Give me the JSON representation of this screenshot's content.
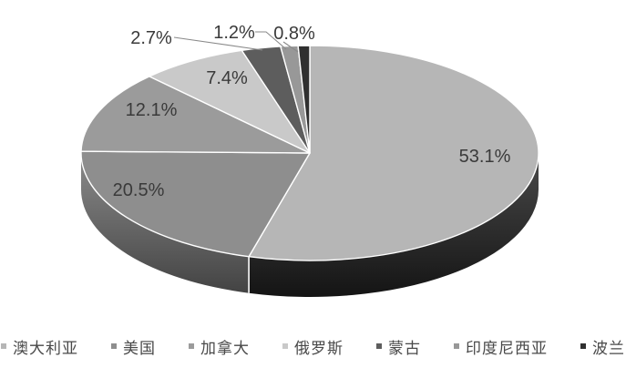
{
  "chart_data": {
    "type": "pie",
    "style": "3d",
    "title": "",
    "legend_position": "bottom",
    "direction": "clockwise",
    "start_angle_deg": 0,
    "categories": [
      "澳大利亚",
      "美国",
      "加拿大",
      "俄罗斯",
      "蒙古",
      "印度尼西亚",
      "波兰"
    ],
    "values": [
      53.1,
      20.5,
      12.1,
      7.4,
      2.7,
      1.2,
      0.8
    ],
    "labels": [
      "53.1%",
      "20.5%",
      "12.1%",
      "7.4%",
      "2.7%",
      "1.2%",
      "0.8%"
    ],
    "colors": [
      "#b6b6b6",
      "#8e8e8e",
      "#9b9b9b",
      "#c9c9c9",
      "#5d5d5d",
      "#989898",
      "#303030"
    ],
    "separator_color": "#ffffff",
    "label_color": "#3a3a3a",
    "leader_line_color": "#8a8a8a",
    "background_color": "#ffffff"
  }
}
